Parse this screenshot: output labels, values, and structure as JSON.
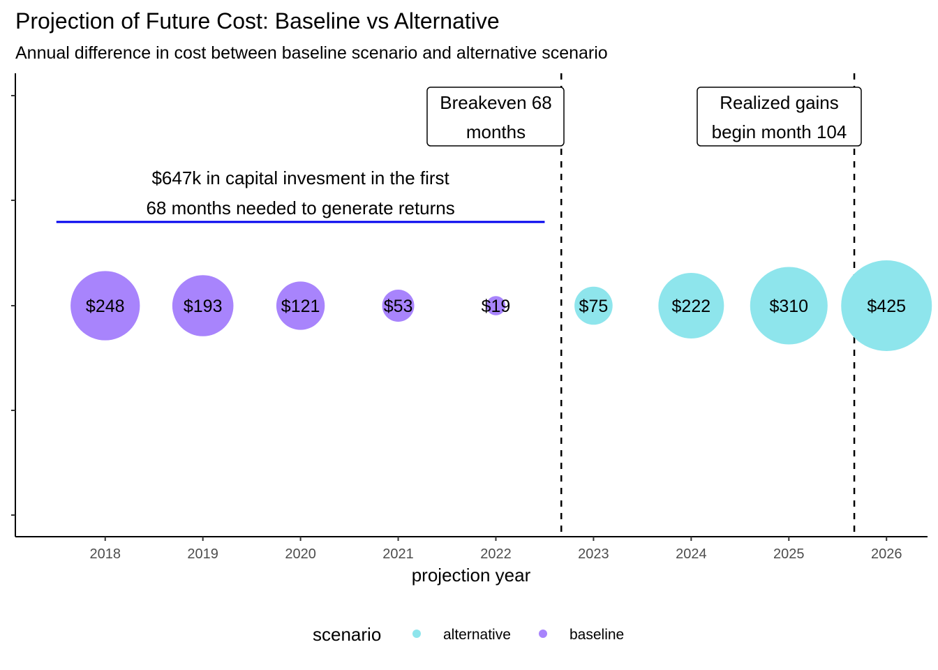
{
  "chart_data": {
    "type": "scatter",
    "title": "Projection of Future Cost: Baseline vs Alternative",
    "subtitle": "Annual difference in cost between baseline scenario and alternative scenario",
    "xlabel": "projection year",
    "ylabel": "",
    "x": [
      2018,
      2019,
      2020,
      2021,
      2022,
      2023,
      2024,
      2025,
      2026
    ],
    "values": [
      248,
      193,
      121,
      53,
      19,
      75,
      222,
      310,
      425
    ],
    "labels": [
      "$248",
      "$193",
      "$121",
      "$53",
      "$19",
      "$75",
      "$222",
      "$310",
      "$425"
    ],
    "scenario": [
      "baseline",
      "baseline",
      "baseline",
      "baseline",
      "baseline",
      "alternative",
      "alternative",
      "alternative",
      "alternative"
    ],
    "xlim": [
      2017.08,
      2026.42
    ],
    "grid": false,
    "legend": {
      "title": "scenario",
      "placement": "bottom",
      "entries": [
        {
          "name": "alternative",
          "color": "#8ee5ec"
        },
        {
          "name": "baseline",
          "color": "#a884fc"
        }
      ]
    },
    "vlines": [
      2022.67,
      2025.67
    ],
    "annotations": {
      "breakeven": [
        "Breakeven 68",
        "months"
      ],
      "gains": [
        "Realized gains",
        "begin month 104"
      ],
      "investment": [
        "$647k in capital invesment in the first",
        "68  months needed to generate returns"
      ]
    },
    "investment_span": [
      2017.5,
      2022.5
    ],
    "colors": {
      "baseline": "#a884fc",
      "alternative": "#8ee5ec",
      "span_line": "#0000ee",
      "vline": "#000000"
    }
  }
}
